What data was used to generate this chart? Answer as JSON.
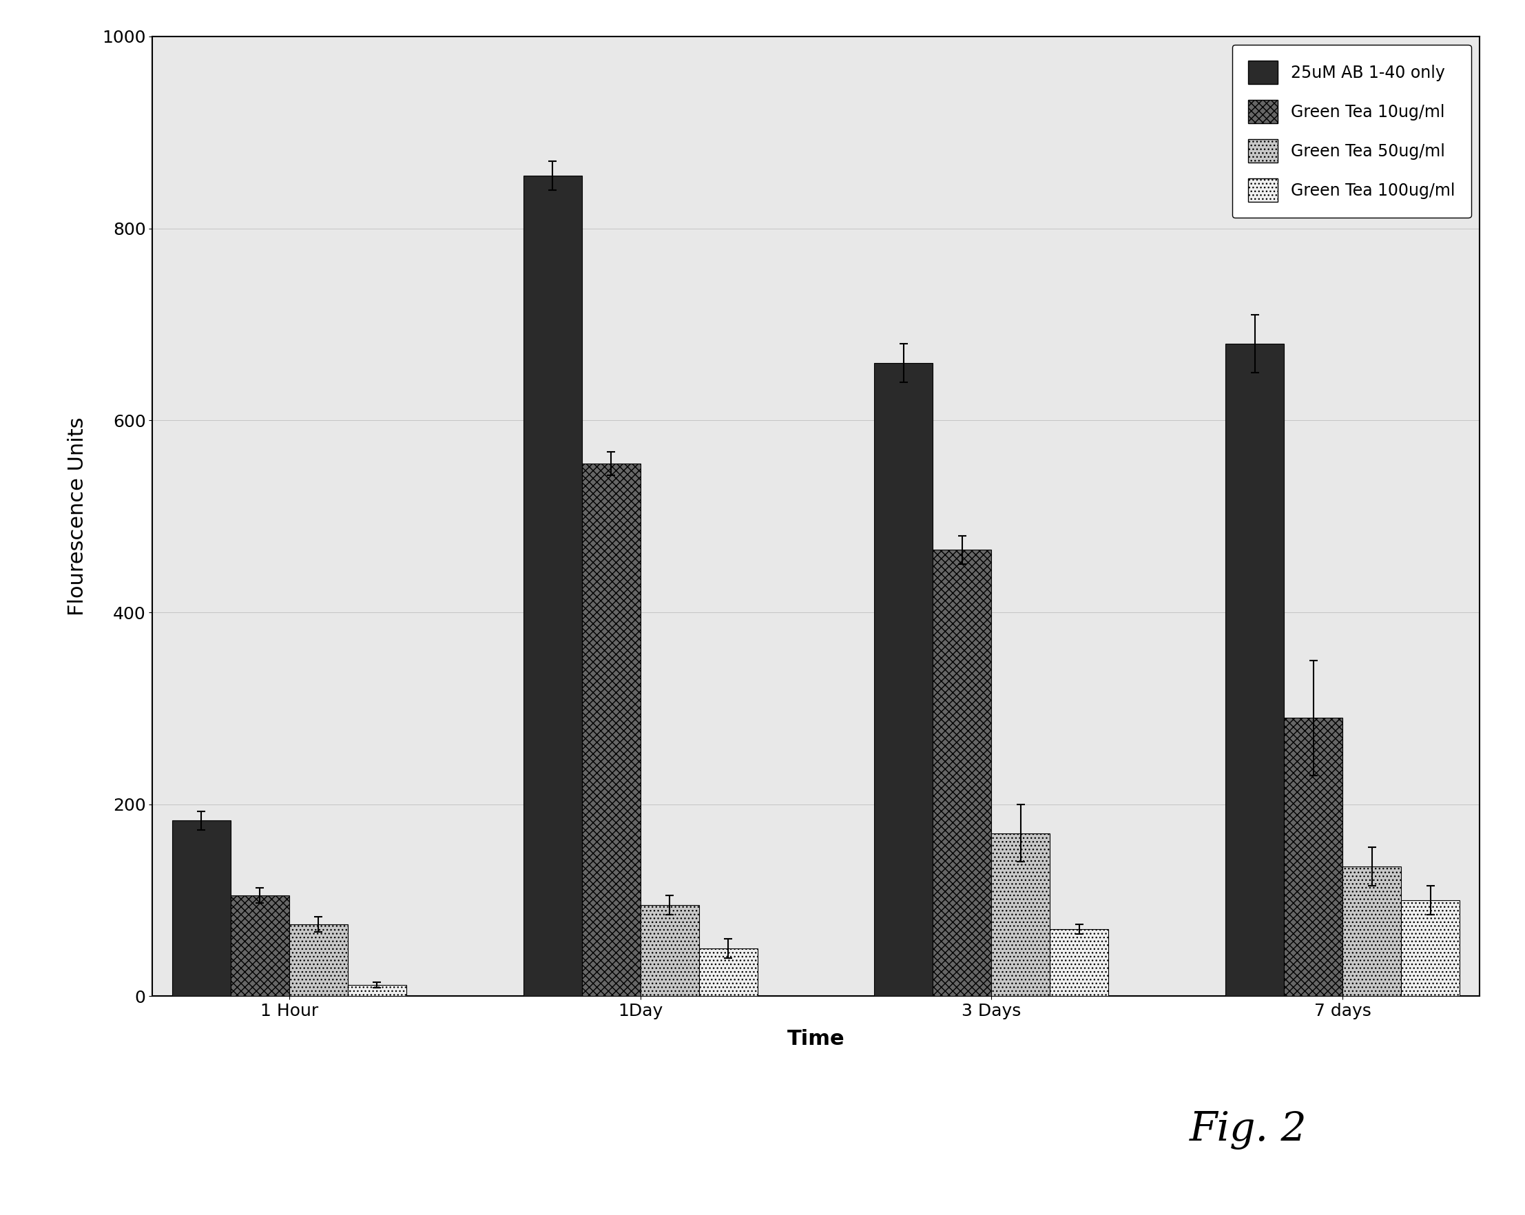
{
  "categories": [
    "1 Hour",
    "1Day",
    "3 Days",
    "7 days"
  ],
  "series": {
    "AB_only": {
      "label": "25uM AB 1-40 only",
      "values": [
        183,
        855,
        660,
        680
      ],
      "errors": [
        10,
        15,
        20,
        30
      ],
      "color": "#2a2a2a",
      "hatch": ""
    },
    "green_tea_10": {
      "label": "Green Tea 10ug/ml",
      "values": [
        105,
        555,
        465,
        290
      ],
      "errors": [
        8,
        12,
        15,
        60
      ],
      "color": "#666666",
      "hatch": "xxx"
    },
    "green_tea_50": {
      "label": "Green Tea 50ug/ml",
      "values": [
        75,
        95,
        170,
        135
      ],
      "errors": [
        8,
        10,
        30,
        20
      ],
      "color": "#c8c8c8",
      "hatch": "..."
    },
    "green_tea_100": {
      "label": "Green Tea 100ug/ml",
      "values": [
        12,
        50,
        70,
        100
      ],
      "errors": [
        3,
        10,
        5,
        15
      ],
      "color": "#f0f0f0",
      "hatch": "..."
    }
  },
  "ylabel": "Flourescence Units",
  "xlabel": "Time",
  "ylim": [
    0,
    1000
  ],
  "yticks": [
    0,
    200,
    400,
    600,
    800,
    1000
  ],
  "fig2_label": "Fig. 2",
  "background_color": "#ffffff",
  "plot_bg_color": "#e8e8e8",
  "bar_width": 0.15,
  "group_positions": [
    0.25,
    1.15,
    2.05,
    2.95
  ],
  "legend_fontsize": 17,
  "axis_label_fontsize": 22,
  "tick_fontsize": 18,
  "fig2_fontsize": 42
}
